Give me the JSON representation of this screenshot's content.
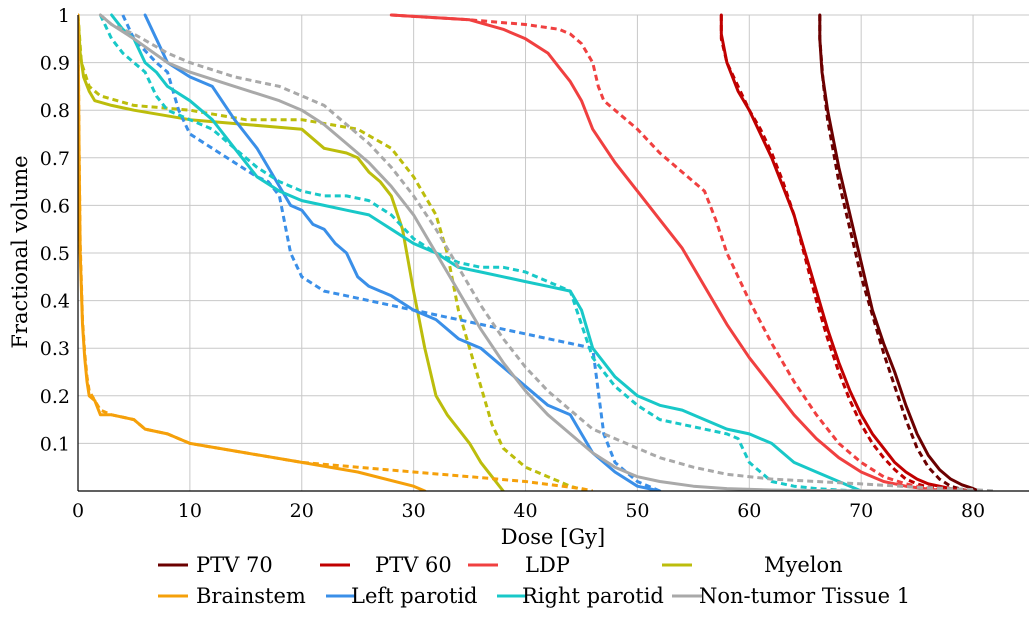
{
  "chart_data": {
    "type": "line",
    "xlabel": "Dose [Gy]",
    "ylabel": "Fractional volume",
    "xlim": [
      0,
      85
    ],
    "ylim": [
      0,
      1
    ],
    "xticks": [
      0,
      10,
      20,
      30,
      40,
      50,
      60,
      70,
      80
    ],
    "yticks": [
      0.1,
      0.2,
      0.3,
      0.4,
      0.5,
      0.6,
      0.7,
      0.8,
      0.9,
      1
    ],
    "grid": true,
    "legend_position": "bottom",
    "series": [
      {
        "name": "PTV 70",
        "color": "#6b0000",
        "style": "solid",
        "x": [
          66.3,
          66.3,
          66.5,
          67,
          68,
          69,
          70,
          71,
          72,
          73,
          74,
          75,
          76,
          77,
          78,
          79,
          80,
          80.5
        ],
        "y": [
          1,
          0.95,
          0.88,
          0.8,
          0.68,
          0.58,
          0.48,
          0.38,
          0.31,
          0.25,
          0.18,
          0.12,
          0.075,
          0.045,
          0.025,
          0.013,
          0.005,
          0
        ]
      },
      {
        "name": "PTV 70",
        "color": "#6b0000",
        "style": "dashed",
        "x": [
          66.3,
          66.3,
          66.6,
          67,
          68,
          69,
          70,
          71,
          72,
          73,
          74,
          75,
          76,
          77,
          78,
          79.5
        ],
        "y": [
          1,
          0.95,
          0.86,
          0.78,
          0.65,
          0.55,
          0.45,
          0.37,
          0.29,
          0.22,
          0.15,
          0.09,
          0.05,
          0.025,
          0.01,
          0
        ]
      },
      {
        "name": "PTV 60",
        "color": "#c00000",
        "style": "solid",
        "x": [
          57.5,
          57.5,
          58,
          59,
          60,
          61,
          62,
          63,
          64,
          65,
          66,
          67,
          68,
          69,
          70,
          71,
          72,
          73,
          74,
          75,
          76,
          78,
          80
        ],
        "y": [
          1,
          0.96,
          0.9,
          0.84,
          0.8,
          0.75,
          0.7,
          0.64,
          0.58,
          0.5,
          0.42,
          0.34,
          0.27,
          0.21,
          0.16,
          0.12,
          0.09,
          0.06,
          0.04,
          0.025,
          0.015,
          0.005,
          0
        ]
      },
      {
        "name": "PTV 60",
        "color": "#c00000",
        "style": "dashed",
        "x": [
          57.5,
          57.5,
          58,
          59,
          60,
          61,
          62,
          63,
          64,
          65,
          66,
          67,
          68,
          69,
          70,
          71,
          72,
          73,
          74,
          75,
          76,
          78
        ],
        "y": [
          1,
          0.95,
          0.9,
          0.85,
          0.8,
          0.76,
          0.71,
          0.65,
          0.58,
          0.49,
          0.4,
          0.32,
          0.25,
          0.19,
          0.14,
          0.1,
          0.07,
          0.045,
          0.025,
          0.015,
          0.008,
          0
        ]
      },
      {
        "name": "LDP",
        "color": "#f04040",
        "style": "solid",
        "x": [
          28,
          35,
          38,
          40,
          42,
          43,
          44,
          45,
          46,
          48,
          50,
          52,
          54,
          56,
          58,
          60,
          62,
          64,
          66,
          68,
          70,
          72,
          74,
          76,
          78
        ],
        "y": [
          1,
          0.99,
          0.97,
          0.95,
          0.92,
          0.89,
          0.86,
          0.82,
          0.76,
          0.69,
          0.63,
          0.57,
          0.51,
          0.43,
          0.35,
          0.28,
          0.22,
          0.16,
          0.11,
          0.07,
          0.04,
          0.02,
          0.01,
          0.004,
          0
        ]
      },
      {
        "name": "LDP",
        "color": "#f04040",
        "style": "dashed",
        "x": [
          28,
          35,
          40,
          43,
          44,
          45,
          46,
          46.5,
          47,
          48,
          50,
          52,
          54,
          56,
          57,
          58,
          60,
          62,
          64,
          66,
          68,
          70,
          72,
          74,
          76,
          78
        ],
        "y": [
          1,
          0.99,
          0.98,
          0.97,
          0.96,
          0.94,
          0.9,
          0.85,
          0.82,
          0.8,
          0.76,
          0.71,
          0.67,
          0.63,
          0.57,
          0.5,
          0.4,
          0.31,
          0.23,
          0.16,
          0.1,
          0.06,
          0.03,
          0.015,
          0.005,
          0
        ]
      },
      {
        "name": "Myelon",
        "color": "#bcbd0c",
        "style": "solid",
        "x": [
          0,
          0.2,
          0.5,
          1,
          1.5,
          3,
          5,
          10,
          15,
          20,
          22,
          24,
          25,
          26,
          27,
          28,
          29,
          30,
          31,
          32,
          33,
          34,
          35,
          36,
          37,
          38
        ],
        "y": [
          1,
          0.92,
          0.87,
          0.84,
          0.82,
          0.81,
          0.8,
          0.78,
          0.77,
          0.76,
          0.72,
          0.71,
          0.7,
          0.67,
          0.65,
          0.62,
          0.55,
          0.42,
          0.3,
          0.2,
          0.16,
          0.13,
          0.1,
          0.06,
          0.03,
          0
        ]
      },
      {
        "name": "Myelon",
        "color": "#bcbd0c",
        "style": "dashed",
        "x": [
          0,
          0.3,
          1,
          2,
          5,
          10,
          15,
          20,
          25,
          28,
          30,
          32,
          33,
          34,
          35,
          36,
          37,
          38,
          40,
          42,
          44,
          45.5
        ],
        "y": [
          1,
          0.9,
          0.85,
          0.83,
          0.81,
          0.8,
          0.78,
          0.78,
          0.76,
          0.72,
          0.66,
          0.58,
          0.5,
          0.38,
          0.3,
          0.22,
          0.14,
          0.09,
          0.05,
          0.03,
          0.01,
          0
        ]
      },
      {
        "name": "Brainstem",
        "color": "#f5a00a",
        "style": "solid",
        "x": [
          0,
          0.1,
          0.2,
          0.4,
          0.6,
          0.8,
          1,
          1.5,
          2,
          3,
          5,
          6,
          8,
          10,
          15,
          20,
          25,
          30,
          31
        ],
        "y": [
          1,
          0.7,
          0.5,
          0.35,
          0.28,
          0.23,
          0.2,
          0.19,
          0.16,
          0.16,
          0.15,
          0.13,
          0.12,
          0.1,
          0.08,
          0.06,
          0.04,
          0.01,
          0
        ]
      },
      {
        "name": "Brainstem",
        "color": "#f5a00a",
        "style": "dashed",
        "x": [
          0,
          0.1,
          0.2,
          0.4,
          0.6,
          0.8,
          1,
          1.5,
          2,
          3,
          5,
          6,
          8,
          10,
          15,
          20,
          25,
          30,
          35,
          40,
          45,
          46
        ],
        "y": [
          1,
          0.72,
          0.52,
          0.36,
          0.29,
          0.24,
          0.21,
          0.19,
          0.17,
          0.16,
          0.15,
          0.13,
          0.12,
          0.1,
          0.08,
          0.06,
          0.05,
          0.04,
          0.03,
          0.02,
          0.005,
          0
        ]
      },
      {
        "name": "Left parotid",
        "color": "#3a8fe8",
        "style": "solid",
        "x": [
          6,
          7,
          8,
          10,
          12,
          14,
          16,
          17,
          18,
          19,
          20,
          21,
          22,
          23,
          24,
          25,
          26,
          28,
          30,
          32,
          34,
          36,
          38,
          40,
          42,
          44,
          46,
          48,
          50,
          52
        ],
        "y": [
          1,
          0.95,
          0.9,
          0.87,
          0.85,
          0.78,
          0.72,
          0.68,
          0.64,
          0.6,
          0.59,
          0.56,
          0.55,
          0.52,
          0.5,
          0.45,
          0.43,
          0.41,
          0.38,
          0.36,
          0.32,
          0.3,
          0.26,
          0.22,
          0.18,
          0.16,
          0.08,
          0.04,
          0.01,
          0
        ]
      },
      {
        "name": "Left parotid",
        "color": "#3a8fe8",
        "style": "dashed",
        "x": [
          4,
          5,
          7,
          8,
          9,
          10,
          12,
          14,
          16,
          17,
          18,
          19,
          20,
          22,
          24,
          26,
          28,
          30,
          32,
          34,
          36,
          38,
          40,
          42,
          44,
          46,
          47,
          48,
          50,
          52
        ],
        "y": [
          1,
          0.95,
          0.9,
          0.88,
          0.8,
          0.75,
          0.72,
          0.69,
          0.66,
          0.65,
          0.62,
          0.5,
          0.45,
          0.42,
          0.41,
          0.4,
          0.39,
          0.38,
          0.37,
          0.36,
          0.35,
          0.34,
          0.33,
          0.32,
          0.31,
          0.3,
          0.12,
          0.06,
          0.02,
          0
        ]
      },
      {
        "name": "Right parotid",
        "color": "#18c8c8",
        "style": "solid",
        "x": [
          3,
          4,
          5,
          6,
          7,
          8,
          10,
          12,
          14,
          16,
          18,
          20,
          22,
          24,
          26,
          28,
          30,
          32,
          34,
          36,
          38,
          40,
          42,
          44,
          45,
          46,
          48,
          50,
          52,
          54,
          56,
          58,
          60,
          62,
          64,
          66,
          68,
          70
        ],
        "y": [
          1,
          0.97,
          0.95,
          0.9,
          0.88,
          0.85,
          0.82,
          0.78,
          0.72,
          0.66,
          0.63,
          0.61,
          0.6,
          0.59,
          0.58,
          0.55,
          0.52,
          0.5,
          0.47,
          0.46,
          0.45,
          0.44,
          0.43,
          0.42,
          0.38,
          0.3,
          0.24,
          0.2,
          0.18,
          0.17,
          0.15,
          0.13,
          0.12,
          0.1,
          0.06,
          0.04,
          0.02,
          0
        ]
      },
      {
        "name": "Right parotid",
        "color": "#18c8c8",
        "style": "dashed",
        "x": [
          2,
          3,
          4,
          5,
          6,
          7,
          8,
          10,
          12,
          14,
          16,
          18,
          20,
          22,
          24,
          26,
          28,
          30,
          32,
          34,
          36,
          38,
          40,
          42,
          44,
          46,
          48,
          50,
          52,
          54,
          56,
          58,
          59,
          60,
          61,
          62,
          64,
          66,
          68,
          70
        ],
        "y": [
          1,
          0.95,
          0.92,
          0.9,
          0.88,
          0.83,
          0.8,
          0.78,
          0.76,
          0.72,
          0.68,
          0.65,
          0.63,
          0.62,
          0.62,
          0.61,
          0.58,
          0.53,
          0.5,
          0.48,
          0.47,
          0.47,
          0.46,
          0.44,
          0.42,
          0.28,
          0.22,
          0.18,
          0.15,
          0.14,
          0.13,
          0.12,
          0.11,
          0.06,
          0.04,
          0.02,
          0.01,
          0.005,
          0.002,
          0
        ]
      },
      {
        "name": "Non-tumor Tissue 1",
        "color": "#a9a9a9",
        "style": "solid",
        "x": [
          2,
          3,
          5,
          8,
          10,
          14,
          18,
          20,
          22,
          24,
          26,
          28,
          30,
          32,
          34,
          36,
          38,
          40,
          42,
          44,
          46,
          48,
          50,
          52,
          55,
          58,
          62,
          66,
          70,
          80
        ],
        "y": [
          1,
          0.98,
          0.95,
          0.9,
          0.88,
          0.85,
          0.82,
          0.8,
          0.77,
          0.73,
          0.69,
          0.64,
          0.58,
          0.5,
          0.42,
          0.34,
          0.27,
          0.21,
          0.16,
          0.12,
          0.08,
          0.05,
          0.03,
          0.02,
          0.01,
          0.005,
          0.002,
          0.001,
          0.0005,
          0
        ]
      },
      {
        "name": "Non-tumor Tissue 1",
        "color": "#a9a9a9",
        "style": "dashed",
        "x": [
          2,
          3,
          5,
          8,
          10,
          14,
          18,
          20,
          22,
          24,
          26,
          28,
          30,
          32,
          34,
          36,
          38,
          40,
          42,
          44,
          46,
          48,
          50,
          52,
          55,
          58,
          62,
          66,
          70,
          75,
          80,
          82
        ],
        "y": [
          1,
          0.98,
          0.96,
          0.92,
          0.9,
          0.87,
          0.85,
          0.83,
          0.81,
          0.77,
          0.73,
          0.68,
          0.62,
          0.55,
          0.47,
          0.39,
          0.32,
          0.26,
          0.21,
          0.17,
          0.13,
          0.11,
          0.09,
          0.07,
          0.05,
          0.035,
          0.025,
          0.02,
          0.015,
          0.008,
          0.003,
          0
        ]
      }
    ],
    "legend": [
      [
        "PTV 70",
        "#6b0000"
      ],
      [
        "PTV 60",
        "#c00000"
      ],
      [
        "LDP",
        "#f04040"
      ],
      [
        "Myelon",
        "#bcbd0c"
      ],
      [
        "Brainstem",
        "#f5a00a"
      ],
      [
        "Left parotid",
        "#3a8fe8"
      ],
      [
        "Right parotid",
        "#18c8c8"
      ],
      [
        "Non-tumor Tissue 1",
        "#a9a9a9"
      ]
    ]
  }
}
